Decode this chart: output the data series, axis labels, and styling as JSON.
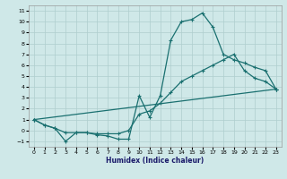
{
  "xlabel": "Humidex (Indice chaleur)",
  "xlim": [
    -0.5,
    23.5
  ],
  "ylim": [
    -1.5,
    11.5
  ],
  "xticks": [
    0,
    1,
    2,
    3,
    4,
    5,
    6,
    7,
    8,
    9,
    10,
    11,
    12,
    13,
    14,
    15,
    16,
    17,
    18,
    19,
    20,
    21,
    22,
    23
  ],
  "yticks": [
    -1,
    0,
    1,
    2,
    3,
    4,
    5,
    6,
    7,
    8,
    9,
    10,
    11
  ],
  "bg_color": "#cfe8e8",
  "grid_color": "#aecece",
  "line_color": "#1a7070",
  "line1_x": [
    0,
    1,
    2,
    3,
    4,
    5,
    6,
    7,
    8,
    9,
    10,
    11,
    12,
    13,
    14,
    15,
    16,
    17,
    18,
    19,
    20,
    21,
    22,
    23
  ],
  "line1_y": [
    1,
    0.5,
    0.2,
    -1.0,
    -0.2,
    -0.2,
    -0.4,
    -0.5,
    -0.8,
    -0.8,
    3.2,
    1.2,
    3.2,
    8.3,
    10.0,
    10.2,
    10.8,
    9.5,
    7.0,
    6.5,
    6.2,
    5.8,
    5.5,
    3.8
  ],
  "line2_x": [
    0,
    1,
    2,
    3,
    4,
    5,
    6,
    7,
    8,
    9,
    10,
    11,
    12,
    13,
    14,
    15,
    16,
    17,
    18,
    19,
    20,
    21,
    22,
    23
  ],
  "line2_y": [
    1,
    0.5,
    0.2,
    -0.2,
    -0.2,
    -0.2,
    -0.3,
    -0.3,
    -0.3,
    0.0,
    1.5,
    1.8,
    2.5,
    3.5,
    4.5,
    5.0,
    5.5,
    6.0,
    6.5,
    7.0,
    5.5,
    4.8,
    4.5,
    3.8
  ],
  "line3_x": [
    0,
    23
  ],
  "line3_y": [
    1,
    3.8
  ]
}
